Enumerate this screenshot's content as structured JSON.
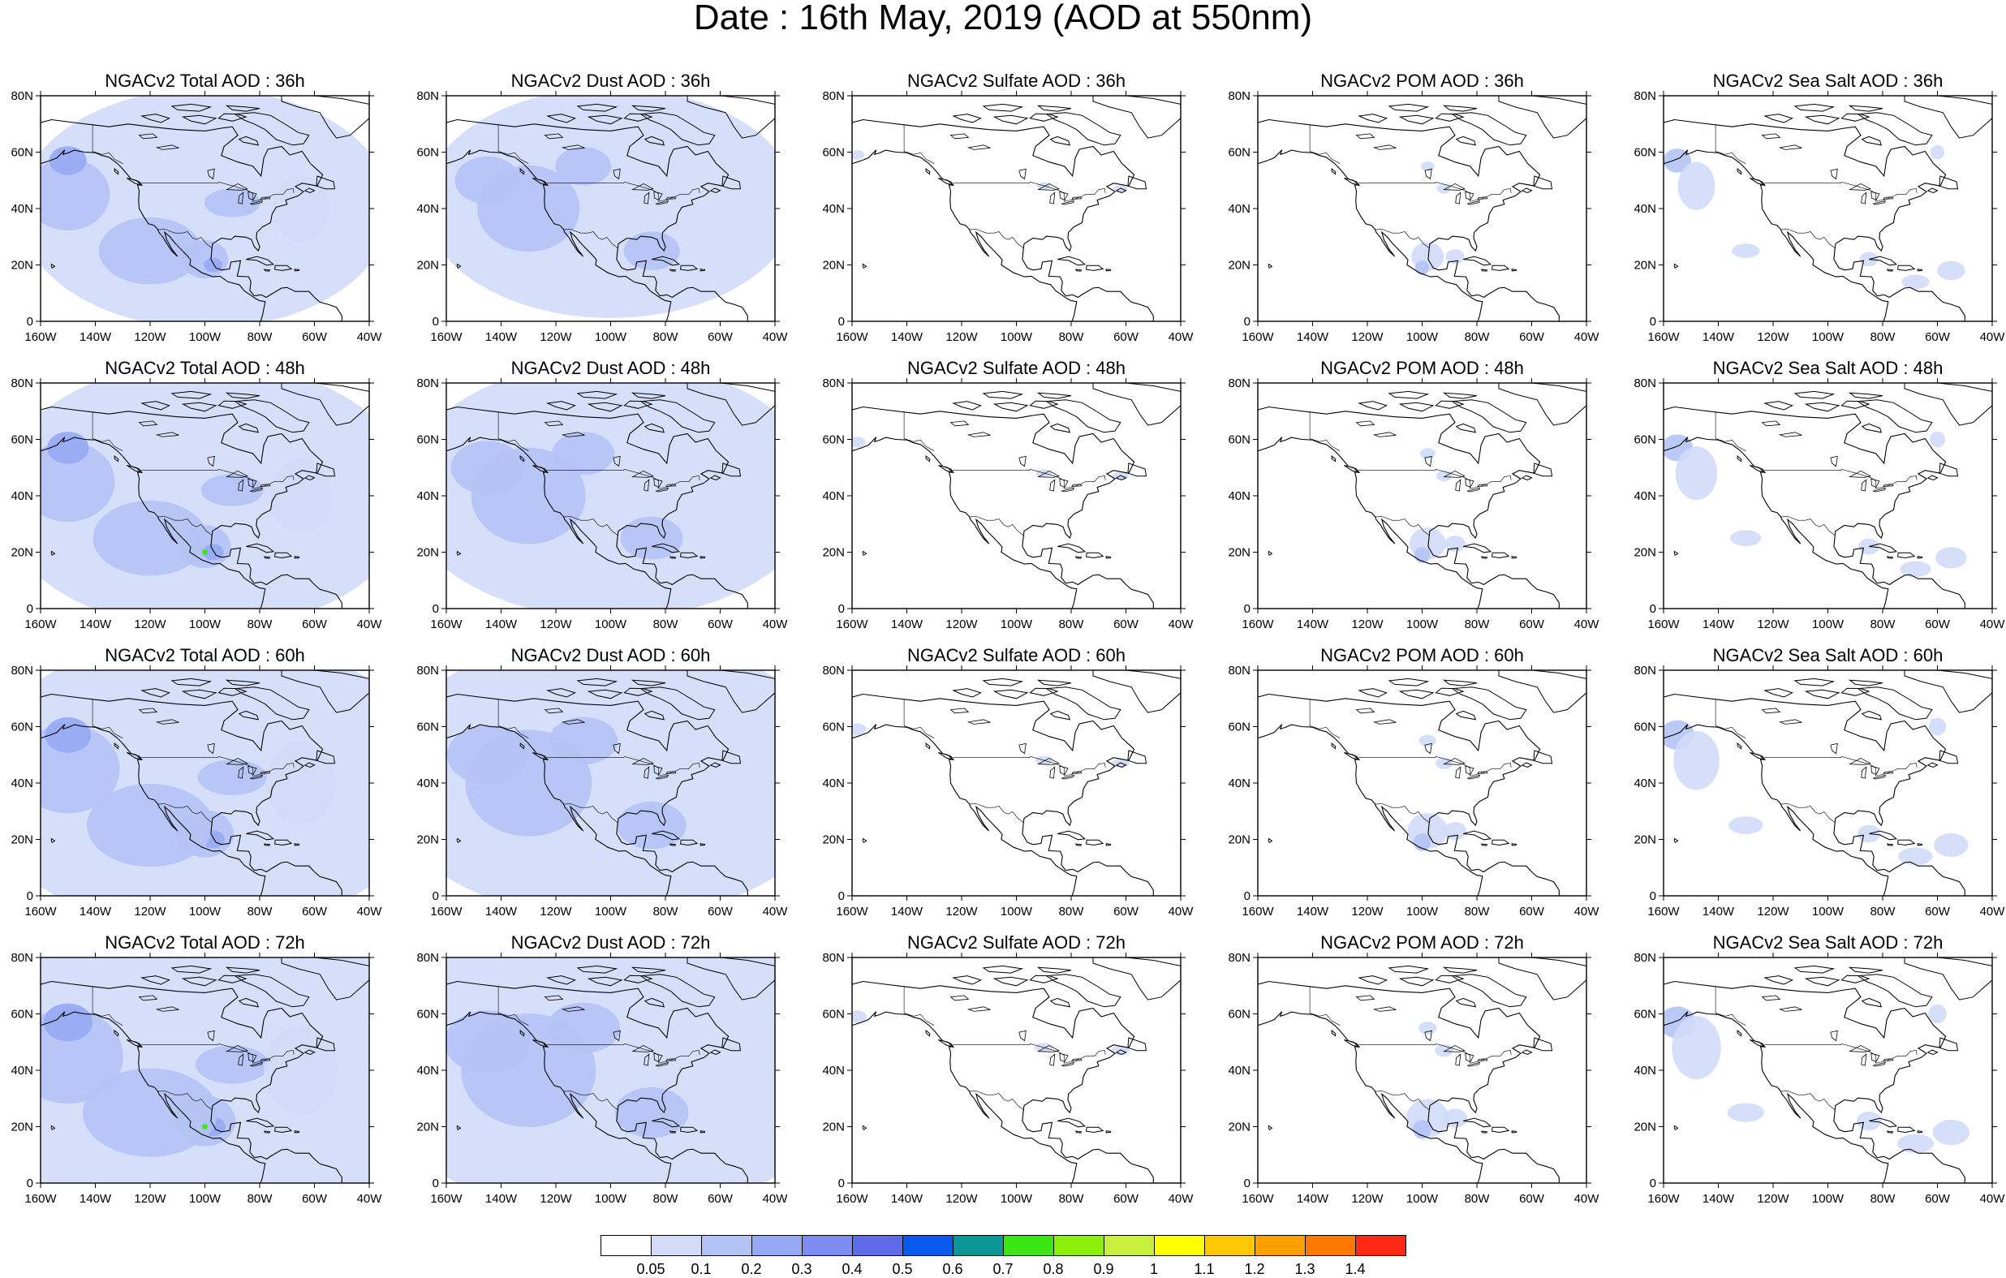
{
  "title": "Date : 16th May, 2019 (AOD at 550nm)",
  "chart_data": {
    "type": "heatmap",
    "layout": "4 rows x 5 columns of maps",
    "map_domain": {
      "lon_range": [
        -160,
        -40
      ],
      "lat_range": [
        0,
        80
      ]
    },
    "x_ticks": [
      "160W",
      "140W",
      "120W",
      "100W",
      "80W",
      "60W",
      "40W"
    ],
    "y_ticks": [
      "0",
      "20N",
      "40N",
      "60N",
      "80N"
    ],
    "species": [
      "Total",
      "Dust",
      "Sulfate",
      "POM",
      "Sea Salt"
    ],
    "forecast_hours": [
      "36h",
      "48h",
      "60h",
      "72h"
    ],
    "panels": [
      {
        "title": "NGACv2 Total AOD : 36h",
        "species": "Total",
        "hour": "36h"
      },
      {
        "title": "NGACv2 Dust AOD : 36h",
        "species": "Dust",
        "hour": "36h"
      },
      {
        "title": "NGACv2 Sulfate AOD : 36h",
        "species": "Sulfate",
        "hour": "36h"
      },
      {
        "title": "NGACv2 POM AOD : 36h",
        "species": "POM",
        "hour": "36h"
      },
      {
        "title": "NGACv2 Sea Salt AOD : 36h",
        "species": "Sea Salt",
        "hour": "36h"
      },
      {
        "title": "NGACv2 Total AOD : 48h",
        "species": "Total",
        "hour": "48h"
      },
      {
        "title": "NGACv2 Dust AOD : 48h",
        "species": "Dust",
        "hour": "48h"
      },
      {
        "title": "NGACv2 Sulfate AOD : 48h",
        "species": "Sulfate",
        "hour": "48h"
      },
      {
        "title": "NGACv2 POM AOD : 48h",
        "species": "POM",
        "hour": "48h"
      },
      {
        "title": "NGACv2 Sea Salt AOD : 48h",
        "species": "Sea Salt",
        "hour": "48h"
      },
      {
        "title": "NGACv2 Total AOD : 60h",
        "species": "Total",
        "hour": "60h"
      },
      {
        "title": "NGACv2 Dust AOD : 60h",
        "species": "Dust",
        "hour": "60h"
      },
      {
        "title": "NGACv2 Sulfate AOD : 60h",
        "species": "Sulfate",
        "hour": "60h"
      },
      {
        "title": "NGACv2 POM AOD : 60h",
        "species": "POM",
        "hour": "60h"
      },
      {
        "title": "NGACv2 Sea Salt AOD : 60h",
        "species": "Sea Salt",
        "hour": "60h"
      },
      {
        "title": "NGACv2 Total AOD : 72h",
        "species": "Total",
        "hour": "72h"
      },
      {
        "title": "NGACv2 Dust AOD : 72h",
        "species": "Dust",
        "hour": "72h"
      },
      {
        "title": "NGACv2 Sulfate AOD : 72h",
        "species": "Sulfate",
        "hour": "72h"
      },
      {
        "title": "NGACv2 POM AOD : 72h",
        "species": "POM",
        "hour": "72h"
      },
      {
        "title": "NGACv2 Sea Salt  AOD : 72h",
        "species": "Sea Salt",
        "hour": "72h"
      }
    ],
    "colorbar": {
      "levels": [
        "0.05",
        "0.1",
        "0.2",
        "0.3",
        "0.4",
        "0.5",
        "0.6",
        "0.7",
        "0.8",
        "0.9",
        "1",
        "1.1",
        "1.2",
        "1.3",
        "1.4"
      ],
      "colors": [
        "#ffffff",
        "#d2dcf8",
        "#b4c3f5",
        "#96a9f4",
        "#7d8cf0",
        "#5f6be8",
        "#0a5af0",
        "#0a9696",
        "#3ce614",
        "#8cf00a",
        "#c8f03c",
        "#ffff00",
        "#ffc800",
        "#ffa000",
        "#ff7800",
        "#ff2814"
      ]
    }
  }
}
